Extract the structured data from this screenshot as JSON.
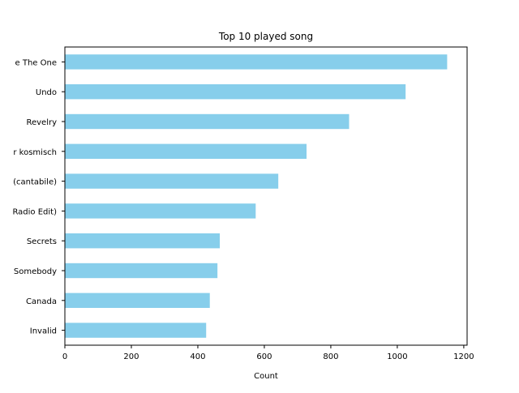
{
  "chart_data": {
    "type": "bar",
    "orientation": "horizontal",
    "title": "Top 10 played song",
    "xlabel": "Count",
    "ylabel": "",
    "categories": [
      "e The One",
      "Undo",
      "Revelry",
      "r kosmisch",
      "(cantabile)",
      "Radio Edit)",
      "Secrets",
      "Somebody",
      "Canada",
      "Invalid"
    ],
    "values": [
      1150,
      1025,
      855,
      727,
      642,
      574,
      466,
      459,
      436,
      425
    ],
    "xlim": [
      0,
      1210
    ],
    "xticks": [
      0,
      200,
      400,
      600,
      800,
      1000,
      1200
    ],
    "bar_color": "#87ceeb",
    "grid": false,
    "legend": "none"
  }
}
